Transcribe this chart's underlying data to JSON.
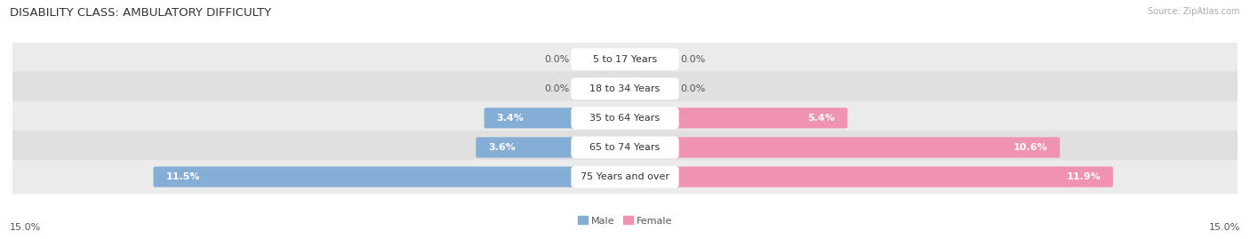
{
  "title": "DISABILITY CLASS: AMBULATORY DIFFICULTY",
  "source": "Source: ZipAtlas.com",
  "categories": [
    "5 to 17 Years",
    "18 to 34 Years",
    "35 to 64 Years",
    "65 to 74 Years",
    "75 Years and over"
  ],
  "male_values": [
    0.0,
    0.0,
    3.4,
    3.6,
    11.5
  ],
  "female_values": [
    0.0,
    0.0,
    5.4,
    10.6,
    11.9
  ],
  "male_color": "#85aed6",
  "female_color": "#f093b0",
  "male_label": "Male",
  "female_label": "Female",
  "xlim": 15.0,
  "x_tick_left": "15.0%",
  "x_tick_right": "15.0%",
  "row_bg_colors": [
    "#ebebeb",
    "#e0e0e0"
  ],
  "title_fontsize": 9.5,
  "label_fontsize": 8,
  "value_fontsize": 8,
  "category_fontsize": 8,
  "background_color": "#ffffff"
}
